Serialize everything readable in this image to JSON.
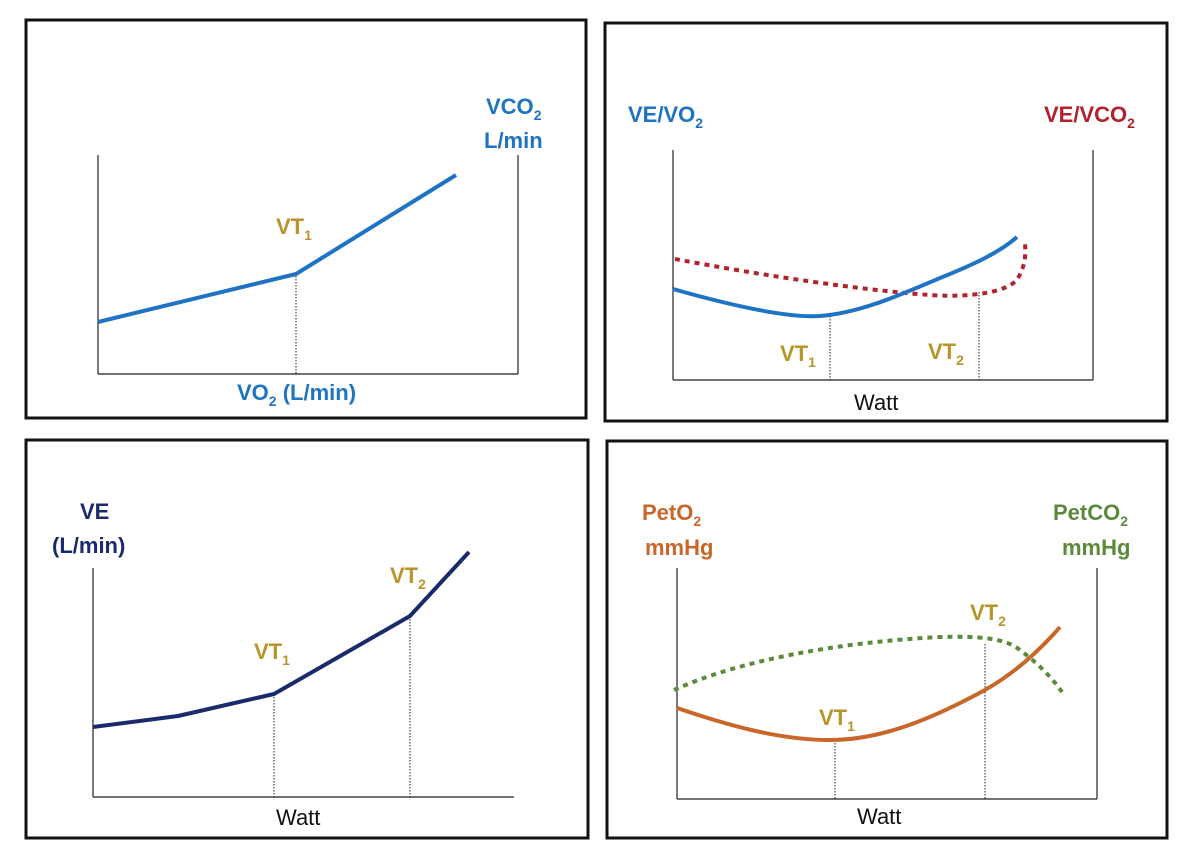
{
  "colors": {
    "blue": "#1f73c4",
    "navy": "#1b2a6b",
    "gold": "#b8952a",
    "dark_red": "#b0232c",
    "orange": "#c9662a",
    "green": "#5a8a3a",
    "frame": "#111111",
    "axis": "#222222"
  },
  "panels": [
    {
      "id": "vco2-vs-vo2",
      "ylabel": {
        "base": "VCO",
        "sub": "2",
        "line2": "L/min"
      },
      "xlabel": {
        "base": "VO",
        "sub": "2",
        "suffix": " (L/min)"
      },
      "markers": [
        {
          "base": "VT",
          "sub": "1"
        }
      ]
    },
    {
      "id": "ve-ratios-vs-watt",
      "left_label": {
        "base": "VE/VO",
        "sub": "2"
      },
      "right_label": {
        "base": "VE/VCO",
        "sub": "2"
      },
      "xlabel": "Watt",
      "markers": [
        {
          "base": "VT",
          "sub": "1"
        },
        {
          "base": "VT",
          "sub": "2"
        }
      ]
    },
    {
      "id": "ve-vs-watt",
      "ylabel": {
        "line1": "VE",
        "line2": "(L/min)"
      },
      "xlabel": "Watt",
      "markers": [
        {
          "base": "VT",
          "sub": "1"
        },
        {
          "base": "VT",
          "sub": "2"
        }
      ]
    },
    {
      "id": "petgas-vs-watt",
      "left_label": {
        "base": "PetO",
        "sub": "2",
        "line2": "mmHg"
      },
      "right_label": {
        "base": "PetCO",
        "sub": "2",
        "line2": "mmHg"
      },
      "xlabel": "Watt",
      "markers": [
        {
          "base": "VT",
          "sub": "1"
        },
        {
          "base": "VT",
          "sub": "2"
        }
      ]
    }
  ]
}
